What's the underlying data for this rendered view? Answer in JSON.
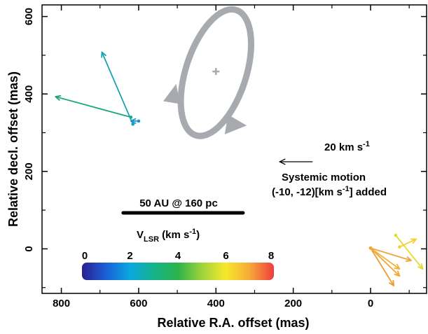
{
  "chart_data": {
    "type": "scatter",
    "xlabel": "Relative R.A. offset (mas)",
    "ylabel": "Relative decl. offset (mas)",
    "x_reversed": true,
    "xlim": [
      850,
      -145
    ],
    "ylim": [
      -115,
      630
    ],
    "x_ticks": [
      800,
      600,
      400,
      200,
      0
    ],
    "y_ticks": [
      0,
      200,
      400,
      600
    ],
    "x_tick_labels": [
      "800",
      "600",
      "400",
      "200",
      "0"
    ],
    "y_tick_labels": [
      "0",
      "200",
      "400",
      "600"
    ],
    "grid": false,
    "annotations": {
      "velocity_scale_label": "20 km s",
      "velocity_scale_sup": "-1",
      "systemic_line1": "Systemic motion",
      "systemic_line2_pre": "(-10, -12)[km s",
      "systemic_line2_sup": "-1",
      "systemic_line2_post": "] added",
      "length_scale_label": "50 AU @ 160 pc",
      "colorbar_title_main": "V",
      "colorbar_title_sub": "LSR",
      "colorbar_title_unit": " (km s",
      "colorbar_title_sup": "-1",
      "colorbar_title_close": ")"
    },
    "colorbar": {
      "range": [
        0,
        8
      ],
      "tick_labels": [
        "0",
        "2",
        "4",
        "6",
        "8"
      ],
      "tick_values": [
        0,
        2,
        4,
        6,
        8
      ],
      "colors": [
        "#2b1f8f",
        "#1a5fd6",
        "#0aa7e0",
        "#14b38a",
        "#2bb34a",
        "#9fd43c",
        "#f6e92a",
        "#f6a83a",
        "#ee3d3d"
      ]
    },
    "velocity_scale_arrow": {
      "x_start": 150,
      "x_end": 235,
      "y": 225
    },
    "length_scale_bar": {
      "x_start": 640,
      "x_end": 330,
      "y": 93
    },
    "ellipse": {
      "cx": 400,
      "cy": 455,
      "rx": 78,
      "ry": 170,
      "tilt_deg": 18,
      "center_mark": [
        400,
        458
      ],
      "color": "#a7aaaf"
    },
    "series": [
      {
        "group": "west",
        "features": [
          {
            "x0": 620,
            "y0": 340,
            "x1": 815,
            "y1": 393,
            "color": "#18a77d"
          },
          {
            "x0": 615,
            "y0": 322,
            "x1": 695,
            "y1": 508,
            "color": "#1aa3b3"
          },
          {
            "x0": 600,
            "y0": 330,
            "x1": 620,
            "y1": 330,
            "color": "#1b94cf"
          }
        ]
      },
      {
        "group": "east",
        "features": [
          {
            "x0": 0,
            "y0": 2,
            "x1": -60,
            "y1": -95,
            "color": "#f29a30"
          },
          {
            "x0": 0,
            "y0": 2,
            "x1": -75,
            "y1": -70,
            "color": "#f2a635"
          },
          {
            "x0": 0,
            "y0": 2,
            "x1": -75,
            "y1": -52,
            "color": "#f0b13a"
          },
          {
            "x0": 0,
            "y0": 2,
            "x1": -105,
            "y1": -30,
            "color": "#eea63a"
          },
          {
            "x0": -65,
            "y0": 35,
            "x1": -135,
            "y1": -52,
            "color": "#e2db32"
          },
          {
            "x0": -75,
            "y0": 5,
            "x1": -118,
            "y1": 25,
            "color": "#f4cf35"
          }
        ]
      }
    ]
  }
}
